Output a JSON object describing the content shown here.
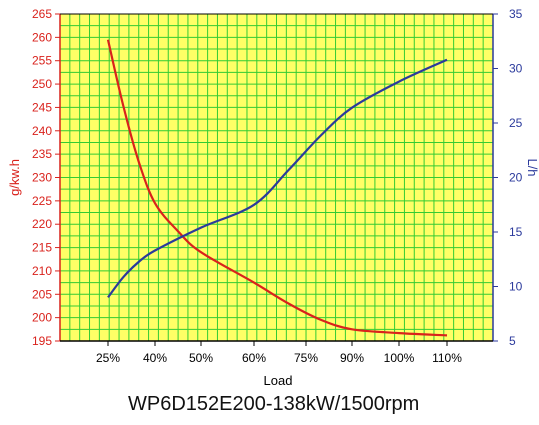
{
  "chart_data": {
    "type": "line",
    "title": "",
    "caption": "WP6D152E200-138kW/1500rpm",
    "xlabel": "Load",
    "categories": [
      "25%",
      "40%",
      "50%",
      "60%",
      "75%",
      "90%",
      "100%",
      "110%"
    ],
    "ylabel_left": "g/kw.h",
    "ylabel_right": "L/h",
    "ylim_left": [
      195,
      265
    ],
    "yticks_left": [
      195,
      200,
      205,
      210,
      215,
      220,
      225,
      230,
      235,
      240,
      245,
      250,
      255,
      260,
      265
    ],
    "ylim_right": [
      5,
      35
    ],
    "yticks_right": [
      5,
      10,
      15,
      20,
      25,
      30,
      35
    ],
    "grid": true,
    "series": [
      {
        "name": "",
        "axis": "left",
        "color": "#d9221c",
        "x": [
          25,
          30,
          35,
          40,
          45,
          50,
          60,
          70,
          80,
          90,
          100,
          110
        ],
        "values": [
          259.5,
          245,
          233,
          224.5,
          218.5,
          214,
          207.5,
          203,
          199.5,
          197.5,
          196.7,
          196.2
        ]
      },
      {
        "name": "",
        "axis": "right",
        "color": "#2b3a9c",
        "x": [
          25,
          30,
          35,
          40,
          50,
          60,
          70,
          80,
          90,
          100,
          110
        ],
        "values": [
          9,
          10.9,
          12.3,
          13.3,
          15.4,
          17.5,
          20.7,
          23.9,
          26.4,
          28.8,
          30.8
        ]
      }
    ],
    "colors": {
      "left_axis": "#d9221c",
      "right_axis": "#2b3a9c",
      "plot_background": "#ffff66",
      "grid": "#33cc33"
    }
  }
}
